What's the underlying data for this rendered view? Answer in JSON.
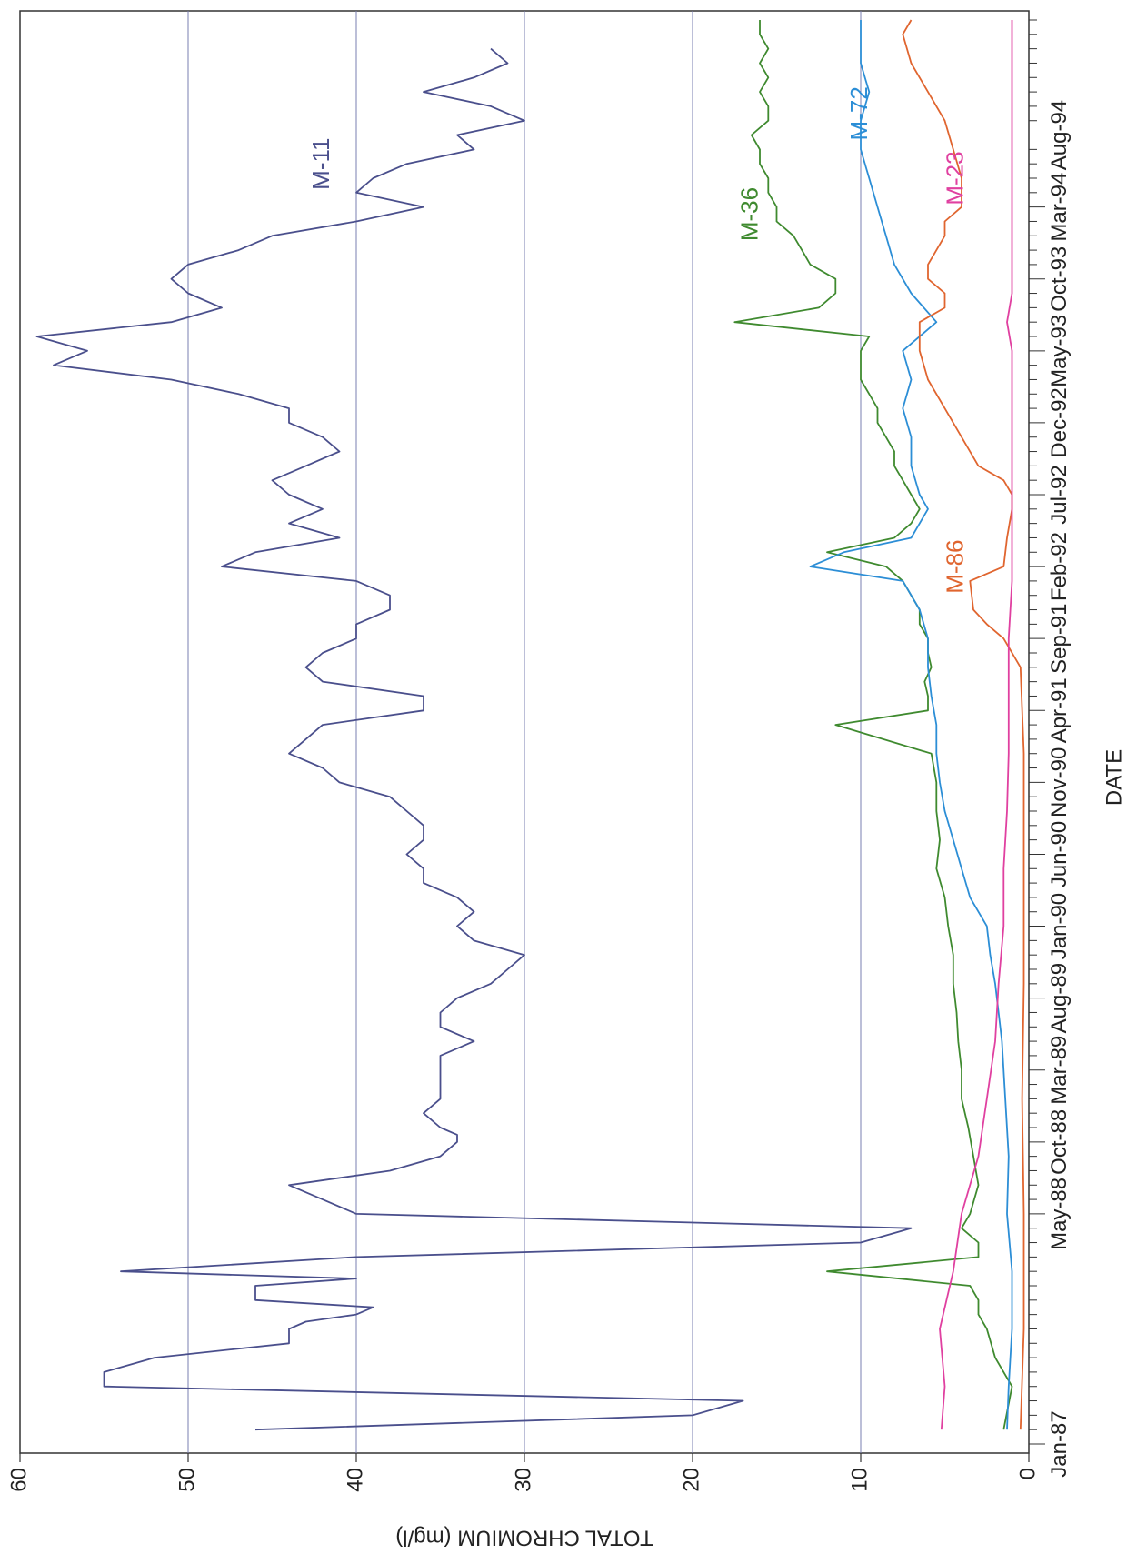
{
  "chart_data": {
    "type": "line",
    "orientation": "rotated-90-clockwise",
    "xlabel": "DATE",
    "ylabel": "TOTAL CHROMIUM (mg/l)",
    "ylim": [
      0,
      60
    ],
    "y_ticks": [
      0,
      10,
      20,
      30,
      40,
      50,
      60
    ],
    "grid": "horizontal at 10, 20, 30, 40, 50",
    "x_tick_labels": [
      {
        "label": "Jan-87",
        "t": 0
      },
      {
        "label": "May-88",
        "t": 16
      },
      {
        "label": "Oct-88",
        "t": 21
      },
      {
        "label": "Mar-89",
        "t": 26
      },
      {
        "label": "Aug-89",
        "t": 31
      },
      {
        "label": "Jan-90",
        "t": 36
      },
      {
        "label": "Jun-90",
        "t": 41
      },
      {
        "label": "Nov-90",
        "t": 46
      },
      {
        "label": "Apr-91",
        "t": 51
      },
      {
        "label": "Sep-91",
        "t": 56
      },
      {
        "label": "Feb-92",
        "t": 61
      },
      {
        "label": "Jul-92",
        "t": 66
      },
      {
        "label": "Dec-92",
        "t": 71
      },
      {
        "label": "May-93",
        "t": 76
      },
      {
        "label": "Oct-93",
        "t": 81
      },
      {
        "label": "Mar-94",
        "t": 86
      },
      {
        "label": "Aug-94",
        "t": 91
      }
    ],
    "series": [
      {
        "name": "M-11",
        "color": "#4a4f8c",
        "points": [
          [
            1,
            46
          ],
          [
            2,
            20
          ],
          [
            3,
            17
          ],
          [
            4,
            55
          ],
          [
            5,
            55
          ],
          [
            6,
            52
          ],
          [
            7,
            44
          ],
          [
            8,
            44
          ],
          [
            8.5,
            43
          ],
          [
            9,
            40
          ],
          [
            9.5,
            39
          ],
          [
            10,
            46
          ],
          [
            11,
            46
          ],
          [
            11.5,
            40
          ],
          [
            12,
            54
          ],
          [
            13,
            40
          ],
          [
            14,
            10
          ],
          [
            15,
            7
          ],
          [
            16,
            40
          ],
          [
            17,
            42
          ],
          [
            18,
            44
          ],
          [
            19,
            38
          ],
          [
            20,
            35
          ],
          [
            21,
            34
          ],
          [
            21.5,
            34
          ],
          [
            22,
            35
          ],
          [
            23,
            36
          ],
          [
            24,
            35
          ],
          [
            25,
            35
          ],
          [
            26,
            35
          ],
          [
            27,
            35
          ],
          [
            28,
            33
          ],
          [
            29,
            35
          ],
          [
            30,
            35
          ],
          [
            31,
            34
          ],
          [
            32,
            32
          ],
          [
            33,
            31
          ],
          [
            34,
            30
          ],
          [
            35,
            33
          ],
          [
            36,
            34
          ],
          [
            37,
            33
          ],
          [
            38,
            34
          ],
          [
            39,
            36
          ],
          [
            40,
            36
          ],
          [
            41,
            37
          ],
          [
            42,
            36
          ],
          [
            43,
            36
          ],
          [
            44,
            37
          ],
          [
            45,
            38
          ],
          [
            46,
            41
          ],
          [
            47,
            42
          ],
          [
            48,
            44
          ],
          [
            49,
            43
          ],
          [
            50,
            42
          ],
          [
            51,
            36
          ],
          [
            52,
            36
          ],
          [
            53,
            42
          ],
          [
            54,
            43
          ],
          [
            55,
            42
          ],
          [
            56,
            40
          ],
          [
            57,
            40
          ],
          [
            58,
            38
          ],
          [
            59,
            38
          ],
          [
            60,
            40
          ],
          [
            61,
            48
          ],
          [
            62,
            46
          ],
          [
            63,
            41
          ],
          [
            64,
            44
          ],
          [
            65,
            42
          ],
          [
            66,
            44
          ],
          [
            67,
            45
          ],
          [
            68,
            43
          ],
          [
            69,
            41
          ],
          [
            70,
            42
          ],
          [
            71,
            44
          ],
          [
            72,
            44
          ],
          [
            73,
            47
          ],
          [
            74,
            51
          ],
          [
            75,
            58
          ],
          [
            76,
            56
          ],
          [
            77,
            59
          ],
          [
            78,
            51
          ],
          [
            79,
            48
          ],
          [
            80,
            50
          ],
          [
            81,
            51
          ],
          [
            82,
            50
          ],
          [
            83,
            47
          ],
          [
            84,
            45
          ],
          [
            85,
            40
          ],
          [
            86,
            36
          ],
          [
            87,
            40
          ],
          [
            88,
            39
          ],
          [
            89,
            37
          ],
          [
            90,
            33
          ],
          [
            91,
            34
          ],
          [
            92,
            30
          ],
          [
            93,
            32
          ],
          [
            94,
            36
          ],
          [
            95,
            33
          ],
          [
            96,
            31
          ],
          [
            97,
            32
          ]
        ]
      },
      {
        "name": "M-36",
        "color": "#3f8a2f",
        "points": [
          [
            1,
            1.5
          ],
          [
            4,
            1
          ],
          [
            6,
            2
          ],
          [
            8,
            2.5
          ],
          [
            9,
            3
          ],
          [
            10,
            3
          ],
          [
            11,
            3.5
          ],
          [
            12,
            12
          ],
          [
            13,
            3
          ],
          [
            14,
            3
          ],
          [
            15,
            4
          ],
          [
            16,
            3.5
          ],
          [
            18,
            3
          ],
          [
            20,
            3.3
          ],
          [
            22,
            3.6
          ],
          [
            24,
            4
          ],
          [
            26,
            4
          ],
          [
            28,
            4.2
          ],
          [
            30,
            4.3
          ],
          [
            32,
            4.5
          ],
          [
            34,
            4.5
          ],
          [
            36,
            4.8
          ],
          [
            38,
            5
          ],
          [
            40,
            5.5
          ],
          [
            42,
            5.3
          ],
          [
            44,
            5.5
          ],
          [
            46,
            5.5
          ],
          [
            48,
            5.8
          ],
          [
            50,
            11.5
          ],
          [
            51,
            6
          ],
          [
            52,
            6
          ],
          [
            53,
            6.2
          ],
          [
            54,
            5.8
          ],
          [
            55,
            6
          ],
          [
            56,
            6
          ],
          [
            57,
            6.5
          ],
          [
            58,
            6.5
          ],
          [
            59,
            7
          ],
          [
            60,
            7.5
          ],
          [
            61,
            8.5
          ],
          [
            62,
            12
          ],
          [
            63,
            8
          ],
          [
            64,
            7
          ],
          [
            65,
            6.5
          ],
          [
            66,
            7
          ],
          [
            67,
            7.5
          ],
          [
            68,
            8
          ],
          [
            69,
            8
          ],
          [
            70,
            8.5
          ],
          [
            71,
            9
          ],
          [
            72,
            9
          ],
          [
            73,
            9.5
          ],
          [
            74,
            10
          ],
          [
            75,
            10
          ],
          [
            76,
            10
          ],
          [
            77,
            9.5
          ],
          [
            78,
            17.5
          ],
          [
            79,
            12.5
          ],
          [
            80,
            11.5
          ],
          [
            81,
            11.5
          ],
          [
            82,
            13
          ],
          [
            83,
            13.5
          ],
          [
            84,
            14
          ],
          [
            85,
            15
          ],
          [
            86,
            15
          ],
          [
            87,
            15.5
          ],
          [
            88,
            15.5
          ],
          [
            89,
            16
          ],
          [
            90,
            16
          ],
          [
            91,
            16.5
          ],
          [
            92,
            15.5
          ],
          [
            93,
            15.5
          ],
          [
            94,
            16
          ],
          [
            95,
            15.5
          ],
          [
            96,
            16
          ],
          [
            97,
            15.5
          ],
          [
            98,
            16
          ],
          [
            99,
            16
          ]
        ]
      },
      {
        "name": "M-72",
        "color": "#2c8ed6",
        "points": [
          [
            1,
            1.3
          ],
          [
            4,
            1.2
          ],
          [
            8,
            1
          ],
          [
            12,
            1
          ],
          [
            16,
            1.3
          ],
          [
            20,
            1.2
          ],
          [
            24,
            1.4
          ],
          [
            28,
            1.6
          ],
          [
            32,
            2
          ],
          [
            34,
            2.3
          ],
          [
            36,
            2.5
          ],
          [
            38,
            3.5
          ],
          [
            40,
            4
          ],
          [
            42,
            4.5
          ],
          [
            44,
            5
          ],
          [
            46,
            5.3
          ],
          [
            48,
            5.5
          ],
          [
            50,
            5.5
          ],
          [
            52,
            5.8
          ],
          [
            54,
            6
          ],
          [
            56,
            6
          ],
          [
            58,
            6.5
          ],
          [
            60,
            7.5
          ],
          [
            61,
            13
          ],
          [
            62,
            11
          ],
          [
            63,
            7
          ],
          [
            64,
            6.5
          ],
          [
            65,
            6
          ],
          [
            66,
            6.5
          ],
          [
            68,
            7
          ],
          [
            70,
            7
          ],
          [
            72,
            7.5
          ],
          [
            74,
            7
          ],
          [
            76,
            7.5
          ],
          [
            78,
            5.5
          ],
          [
            80,
            7
          ],
          [
            82,
            8
          ],
          [
            84,
            8.5
          ],
          [
            86,
            9
          ],
          [
            88,
            9.5
          ],
          [
            90,
            10
          ],
          [
            92,
            10
          ],
          [
            94,
            9.5
          ],
          [
            96,
            10
          ],
          [
            98,
            10
          ],
          [
            99,
            10
          ]
        ]
      },
      {
        "name": "M-86",
        "color": "#e0652f",
        "points": [
          [
            1,
            0.5
          ],
          [
            8,
            0.3
          ],
          [
            16,
            0.3
          ],
          [
            24,
            0.4
          ],
          [
            32,
            0.3
          ],
          [
            40,
            0.3
          ],
          [
            48,
            0.3
          ],
          [
            54,
            0.5
          ],
          [
            56,
            1.5
          ],
          [
            57,
            2.5
          ],
          [
            58,
            3.3
          ],
          [
            60,
            3.5
          ],
          [
            61,
            1.5
          ],
          [
            63,
            1.3
          ],
          [
            65,
            1
          ],
          [
            66,
            1
          ],
          [
            67,
            1.5
          ],
          [
            68,
            3
          ],
          [
            70,
            4
          ],
          [
            72,
            5
          ],
          [
            74,
            6
          ],
          [
            76,
            6.5
          ],
          [
            78,
            6.5
          ],
          [
            79,
            5
          ],
          [
            80,
            5
          ],
          [
            81,
            6
          ],
          [
            82,
            6
          ],
          [
            83,
            5.5
          ],
          [
            84,
            5
          ],
          [
            85,
            5
          ],
          [
            86,
            4
          ],
          [
            88,
            4
          ],
          [
            90,
            4.5
          ],
          [
            92,
            5
          ],
          [
            94,
            6
          ],
          [
            96,
            7
          ],
          [
            98,
            7.5
          ],
          [
            99,
            7
          ]
        ]
      },
      {
        "name": "M-23",
        "color": "#e040a0",
        "points": [
          [
            1,
            5.2
          ],
          [
            4,
            5
          ],
          [
            8,
            5.3
          ],
          [
            12,
            4.5
          ],
          [
            16,
            4
          ],
          [
            20,
            3
          ],
          [
            24,
            2.5
          ],
          [
            28,
            2
          ],
          [
            32,
            1.8
          ],
          [
            36,
            1.5
          ],
          [
            40,
            1.5
          ],
          [
            44,
            1.3
          ],
          [
            48,
            1.2
          ],
          [
            52,
            1.2
          ],
          [
            56,
            1.2
          ],
          [
            60,
            1
          ],
          [
            64,
            1
          ],
          [
            68,
            1
          ],
          [
            72,
            1
          ],
          [
            76,
            1
          ],
          [
            78,
            1.3
          ],
          [
            80,
            1
          ],
          [
            84,
            1
          ],
          [
            88,
            1
          ],
          [
            92,
            1
          ],
          [
            96,
            1
          ],
          [
            99,
            1
          ]
        ]
      }
    ],
    "series_labels": [
      {
        "name": "M-11",
        "t": 89,
        "y": 42
      },
      {
        "name": "M-36",
        "t": 85.5,
        "y": 16.5
      },
      {
        "name": "M-72",
        "t": 92.5,
        "y": 10
      },
      {
        "name": "M-86",
        "t": 61,
        "y": 4.3
      },
      {
        "name": "M-23",
        "t": 88,
        "y": 4.3
      }
    ]
  }
}
